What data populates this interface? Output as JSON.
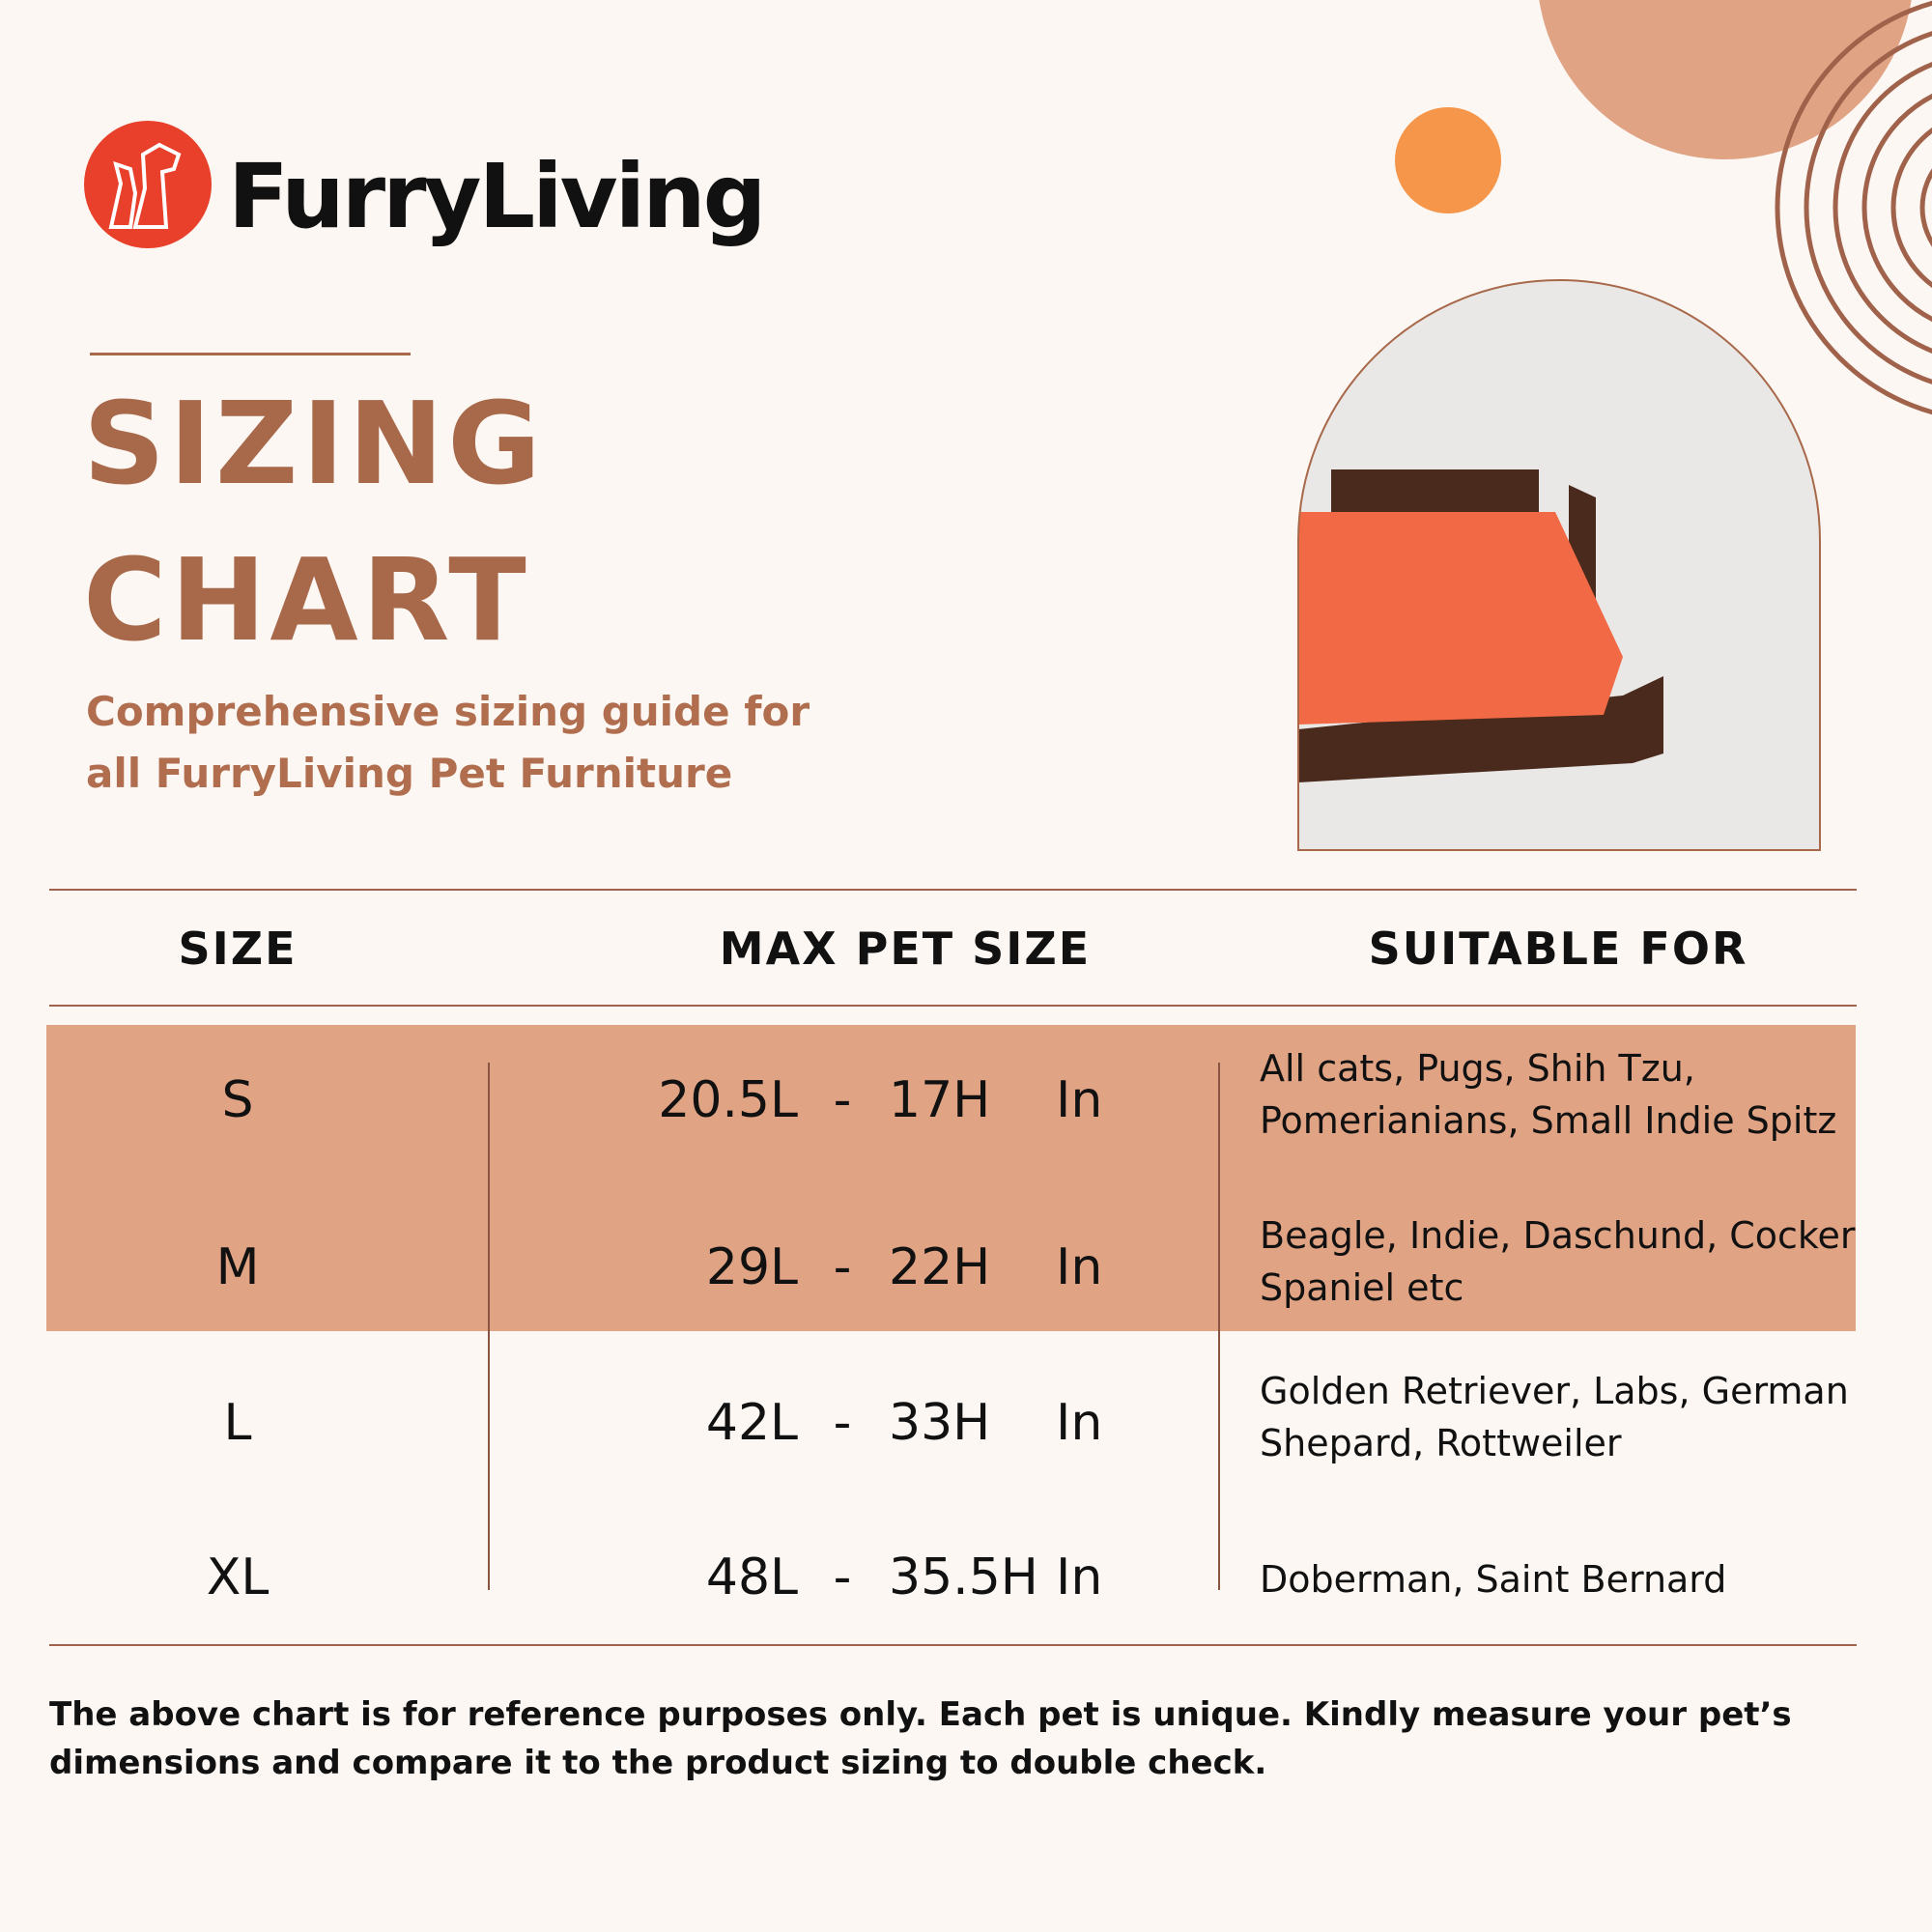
{
  "header": {
    "brand": "FurryLiving"
  },
  "title": {
    "line1": "SIZING",
    "line2": "CHART"
  },
  "subtitle": "Comprehensive sizing guide for all FurryLiving Pet Furniture",
  "table": {
    "headers": [
      "SIZE",
      "MAX PET SIZE",
      "SUITABLE FOR"
    ],
    "separator": "-",
    "rows": [
      {
        "size": "S",
        "length": "20.5L",
        "height": "17H",
        "unit": "In",
        "suitable": "All cats, Pugs, Shih Tzu, Pomerianians, Small Indie Spitz"
      },
      {
        "size": "M",
        "length": "29L",
        "height": "22H",
        "unit": "In",
        "suitable": "Beagle, Indie, Daschund, Cocker Spaniel etc"
      },
      {
        "size": "L",
        "length": "42L",
        "height": "33H",
        "unit": "In",
        "suitable": "Golden Retriever, Labs, German Shepard, Rottweiler"
      },
      {
        "size": "XL",
        "length": "48L",
        "height": "35.5H",
        "unit": "In",
        "suitable": "Doberman, Saint Bernard"
      }
    ]
  },
  "note": "The above chart is for reference purposes only. Each pet is unique. Kindly measure your pet’s dimensions and compare it to the product sizing to double check."
}
